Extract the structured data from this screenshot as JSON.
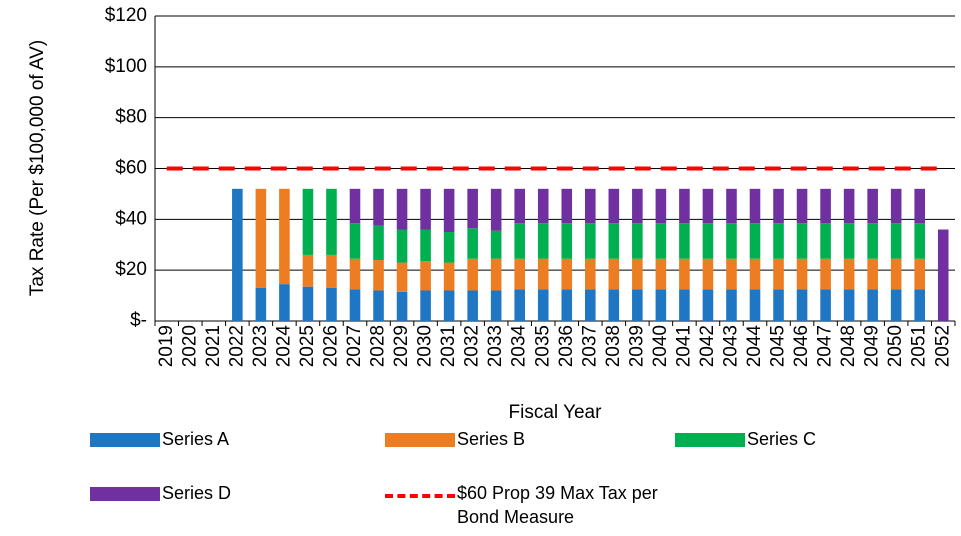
{
  "chart_data": {
    "type": "stacked-bar-line",
    "x_label": "Fiscal Year",
    "y_label": "Tax Rate (Per $100,000 of AV)",
    "categories": [
      "2019",
      "2020",
      "2021",
      "2022",
      "2023",
      "2024",
      "2025",
      "2026",
      "2027",
      "2028",
      "2029",
      "2030",
      "2031",
      "2032",
      "2033",
      "2034",
      "2035",
      "2036",
      "2037",
      "2038",
      "2039",
      "2040",
      "2041",
      "2042",
      "2043",
      "2044",
      "2045",
      "2046",
      "2047",
      "2048",
      "2049",
      "2050",
      "2051",
      "2052"
    ],
    "ylim": [
      0,
      120
    ],
    "yticks": [
      {
        "value": 0,
        "label": "$-"
      },
      {
        "value": 20,
        "label": "$20"
      },
      {
        "value": 40,
        "label": "$40"
      },
      {
        "value": 60,
        "label": "$60"
      },
      {
        "value": 80,
        "label": "$80"
      },
      {
        "value": 100,
        "label": "$100"
      },
      {
        "value": 120,
        "label": "$120"
      }
    ],
    "grid": true,
    "series": [
      {
        "name": "Series A",
        "color": "#1f77c4",
        "kind": "bar",
        "values": [
          null,
          null,
          null,
          52,
          13,
          14.5,
          13.5,
          13,
          12.5,
          12,
          11.5,
          12,
          12,
          12,
          12,
          12.5,
          12.5,
          12.5,
          12.5,
          12.5,
          12.5,
          12.5,
          12.5,
          12.5,
          12.5,
          12.5,
          12.5,
          12.5,
          12.5,
          12.5,
          12.5,
          12.5,
          12.5,
          null
        ]
      },
      {
        "name": "Series B",
        "color": "#ed7d22",
        "kind": "bar",
        "values": [
          null,
          null,
          null,
          null,
          39,
          37.5,
          12.5,
          13,
          12,
          12,
          11.5,
          11.5,
          11,
          12.5,
          12.5,
          12,
          12,
          12,
          12,
          12,
          12,
          12,
          12,
          12,
          12,
          12,
          12,
          12,
          12,
          12,
          12,
          12,
          12,
          null
        ]
      },
      {
        "name": "Series C",
        "color": "#00b050",
        "kind": "bar",
        "values": [
          null,
          null,
          null,
          null,
          null,
          null,
          26,
          26,
          14,
          13.5,
          13,
          12.5,
          12,
          12,
          11,
          14,
          14,
          14,
          14,
          14,
          14,
          14,
          14,
          14,
          14,
          14,
          14,
          14,
          14,
          14,
          14,
          14,
          14,
          null
        ]
      },
      {
        "name": "Series D",
        "color": "#7030a0",
        "kind": "bar",
        "values": [
          null,
          null,
          null,
          null,
          null,
          null,
          null,
          null,
          13.5,
          14.5,
          16,
          16,
          17,
          15.5,
          16.5,
          13.5,
          13.5,
          13.5,
          13.5,
          13.5,
          13.5,
          13.5,
          13.5,
          13.5,
          13.5,
          13.5,
          13.5,
          13.5,
          13.5,
          13.5,
          13.5,
          13.5,
          13.5,
          36
        ]
      },
      {
        "name": "$60 Prop 39 Max Tax per Bond Measure",
        "color": "#ff0000",
        "kind": "line",
        "dashed": true,
        "values": [
          60,
          60,
          60,
          60,
          60,
          60,
          60,
          60,
          60,
          60,
          60,
          60,
          60,
          60,
          60,
          60,
          60,
          60,
          60,
          60,
          60,
          60,
          60,
          60,
          60,
          60,
          60,
          60,
          60,
          60,
          60,
          60,
          60,
          60
        ]
      }
    ]
  }
}
